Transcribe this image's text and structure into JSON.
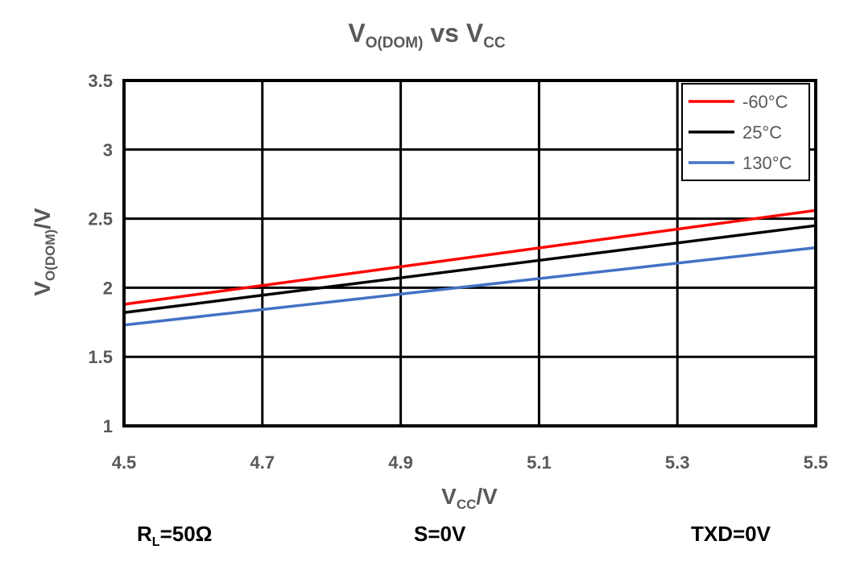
{
  "chart_data": {
    "type": "line",
    "title": {
      "main": "V",
      "sub": "O(DOM)",
      "middle": " vs V",
      "sub2": "CC"
    },
    "xlabel": {
      "main": "V",
      "sub": "CC",
      "suffix": "/V"
    },
    "ylabel": {
      "main": "V",
      "sub": "O(DOM)",
      "suffix": "/V"
    },
    "xlim": [
      4.5,
      5.5
    ],
    "ylim": [
      1,
      3.5
    ],
    "x_ticks": [
      "4.5",
      "4.7",
      "4.9",
      "5.1",
      "5.3",
      "5.5"
    ],
    "y_ticks": [
      "1",
      "1.5",
      "2",
      "2.5",
      "3",
      "3.5"
    ],
    "grid": true,
    "legend_position": "top-right",
    "series": [
      {
        "name": "-60°C",
        "color": "#ff0000",
        "x": [
          4.5,
          5.5
        ],
        "y": [
          1.88,
          2.56
        ]
      },
      {
        "name": "25°C",
        "color": "#000000",
        "x": [
          4.5,
          5.5
        ],
        "y": [
          1.82,
          2.45
        ]
      },
      {
        "name": "130°C",
        "color": "#4472c4",
        "x": [
          4.5,
          5.5
        ],
        "y": [
          1.73,
          2.29
        ]
      }
    ]
  },
  "conditions": {
    "rl": {
      "main": "R",
      "sub": "L",
      "suffix": "=50Ω"
    },
    "s": "S=0V",
    "txd": "TXD=0V"
  }
}
